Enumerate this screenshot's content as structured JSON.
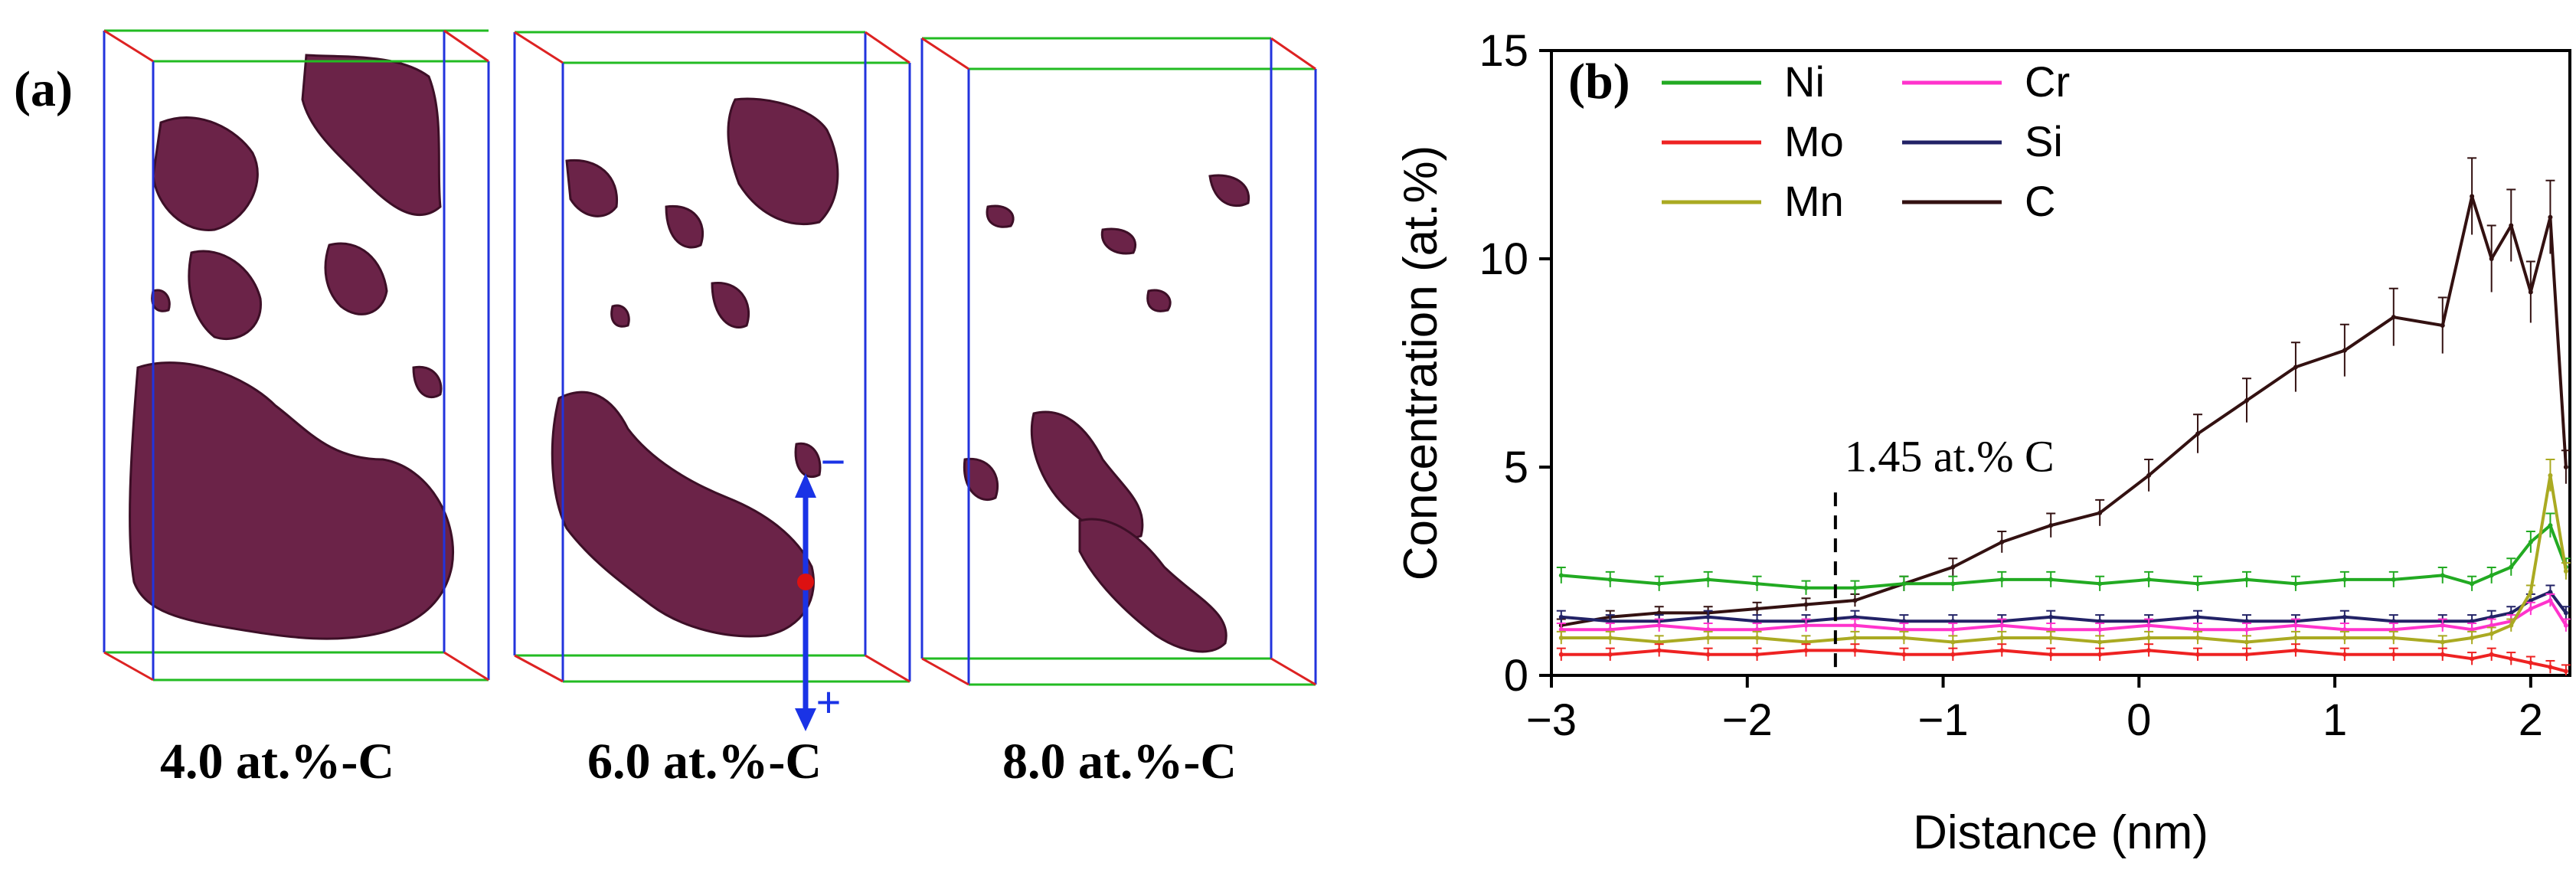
{
  "panel_a": {
    "label": "(a)",
    "boxes": [
      {
        "caption": "4.0 at.%-C"
      },
      {
        "caption": "6.0 at.%-C"
      },
      {
        "caption": "8.0 at.%-C"
      }
    ],
    "arrow_minus": "−",
    "arrow_plus": "+",
    "colors": {
      "isosurface": "#6b2348",
      "isosurface_dark": "#3d0f27",
      "box_blue": "#2233dd",
      "box_green": "#22bb22",
      "box_red": "#dd2222",
      "arrow": "#1a33e6",
      "dot": "#dd1111"
    }
  },
  "panel_b": {
    "label": "(b)",
    "annotation": "1.45 at.% C"
  },
  "chart_data": {
    "type": "line",
    "title": "",
    "xlabel": "Distance (nm)",
    "ylabel": "Concentration (at.%)",
    "xlim": [
      -3,
      2.2
    ],
    "ylim": [
      0,
      15
    ],
    "xticks": [
      -3,
      -2,
      -1,
      0,
      1,
      2
    ],
    "xtick_labels": [
      "−3",
      "−2",
      "−1",
      "0",
      "1",
      "2"
    ],
    "yticks": [
      0,
      5,
      10,
      15
    ],
    "ytick_labels": [
      "0",
      "5",
      "10",
      "15"
    ],
    "annotation_x": -1.55,
    "legend": [
      {
        "name": "Ni",
        "color": "#22aa22"
      },
      {
        "name": "Cr",
        "color": "#ff33cc"
      },
      {
        "name": "Mo",
        "color": "#ee2222"
      },
      {
        "name": "Si",
        "color": "#222266"
      },
      {
        "name": "Mn",
        "color": "#aaaa22"
      },
      {
        "name": "C",
        "color": "#331111"
      }
    ],
    "x": [
      -2.95,
      -2.7,
      -2.45,
      -2.2,
      -1.95,
      -1.7,
      -1.45,
      -1.2,
      -0.95,
      -0.7,
      -0.45,
      -0.2,
      0.05,
      0.3,
      0.55,
      0.8,
      1.05,
      1.3,
      1.55,
      1.7,
      1.8,
      1.9,
      2.0,
      2.1,
      2.18
    ],
    "series": [
      {
        "name": "C",
        "color": "#331111",
        "values": [
          1.2,
          1.4,
          1.5,
          1.5,
          1.6,
          1.7,
          1.8,
          2.2,
          2.6,
          3.2,
          3.6,
          3.9,
          4.8,
          5.8,
          6.6,
          7.4,
          7.8,
          8.6,
          8.4,
          11.5,
          10.0,
          10.8,
          9.2,
          11.0,
          5.0
        ]
      },
      {
        "name": "Ni",
        "color": "#22aa22",
        "values": [
          2.4,
          2.3,
          2.2,
          2.3,
          2.2,
          2.1,
          2.1,
          2.2,
          2.2,
          2.3,
          2.3,
          2.2,
          2.3,
          2.2,
          2.3,
          2.2,
          2.3,
          2.3,
          2.4,
          2.2,
          2.4,
          2.6,
          3.2,
          3.6,
          2.6
        ]
      },
      {
        "name": "Si",
        "color": "#222266",
        "values": [
          1.4,
          1.3,
          1.3,
          1.4,
          1.3,
          1.3,
          1.4,
          1.3,
          1.3,
          1.3,
          1.4,
          1.3,
          1.3,
          1.4,
          1.3,
          1.3,
          1.4,
          1.3,
          1.3,
          1.3,
          1.4,
          1.5,
          1.8,
          2.0,
          1.5
        ]
      },
      {
        "name": "Cr",
        "color": "#ff33cc",
        "values": [
          1.1,
          1.1,
          1.2,
          1.1,
          1.1,
          1.2,
          1.2,
          1.1,
          1.1,
          1.2,
          1.1,
          1.1,
          1.2,
          1.1,
          1.1,
          1.2,
          1.1,
          1.1,
          1.2,
          1.1,
          1.2,
          1.3,
          1.6,
          1.8,
          1.2
        ]
      },
      {
        "name": "Mn",
        "color": "#aaaa22",
        "values": [
          0.9,
          0.9,
          0.8,
          0.9,
          0.9,
          0.8,
          0.9,
          0.9,
          0.8,
          0.9,
          0.9,
          0.8,
          0.9,
          0.9,
          0.8,
          0.9,
          0.9,
          0.9,
          0.8,
          0.9,
          1.0,
          1.2,
          2.0,
          4.8,
          2.5
        ]
      },
      {
        "name": "Mo",
        "color": "#ee2222",
        "values": [
          0.5,
          0.5,
          0.6,
          0.5,
          0.5,
          0.6,
          0.6,
          0.5,
          0.5,
          0.6,
          0.5,
          0.5,
          0.6,
          0.5,
          0.5,
          0.6,
          0.5,
          0.5,
          0.5,
          0.4,
          0.5,
          0.4,
          0.3,
          0.2,
          0.1
        ]
      }
    ]
  }
}
